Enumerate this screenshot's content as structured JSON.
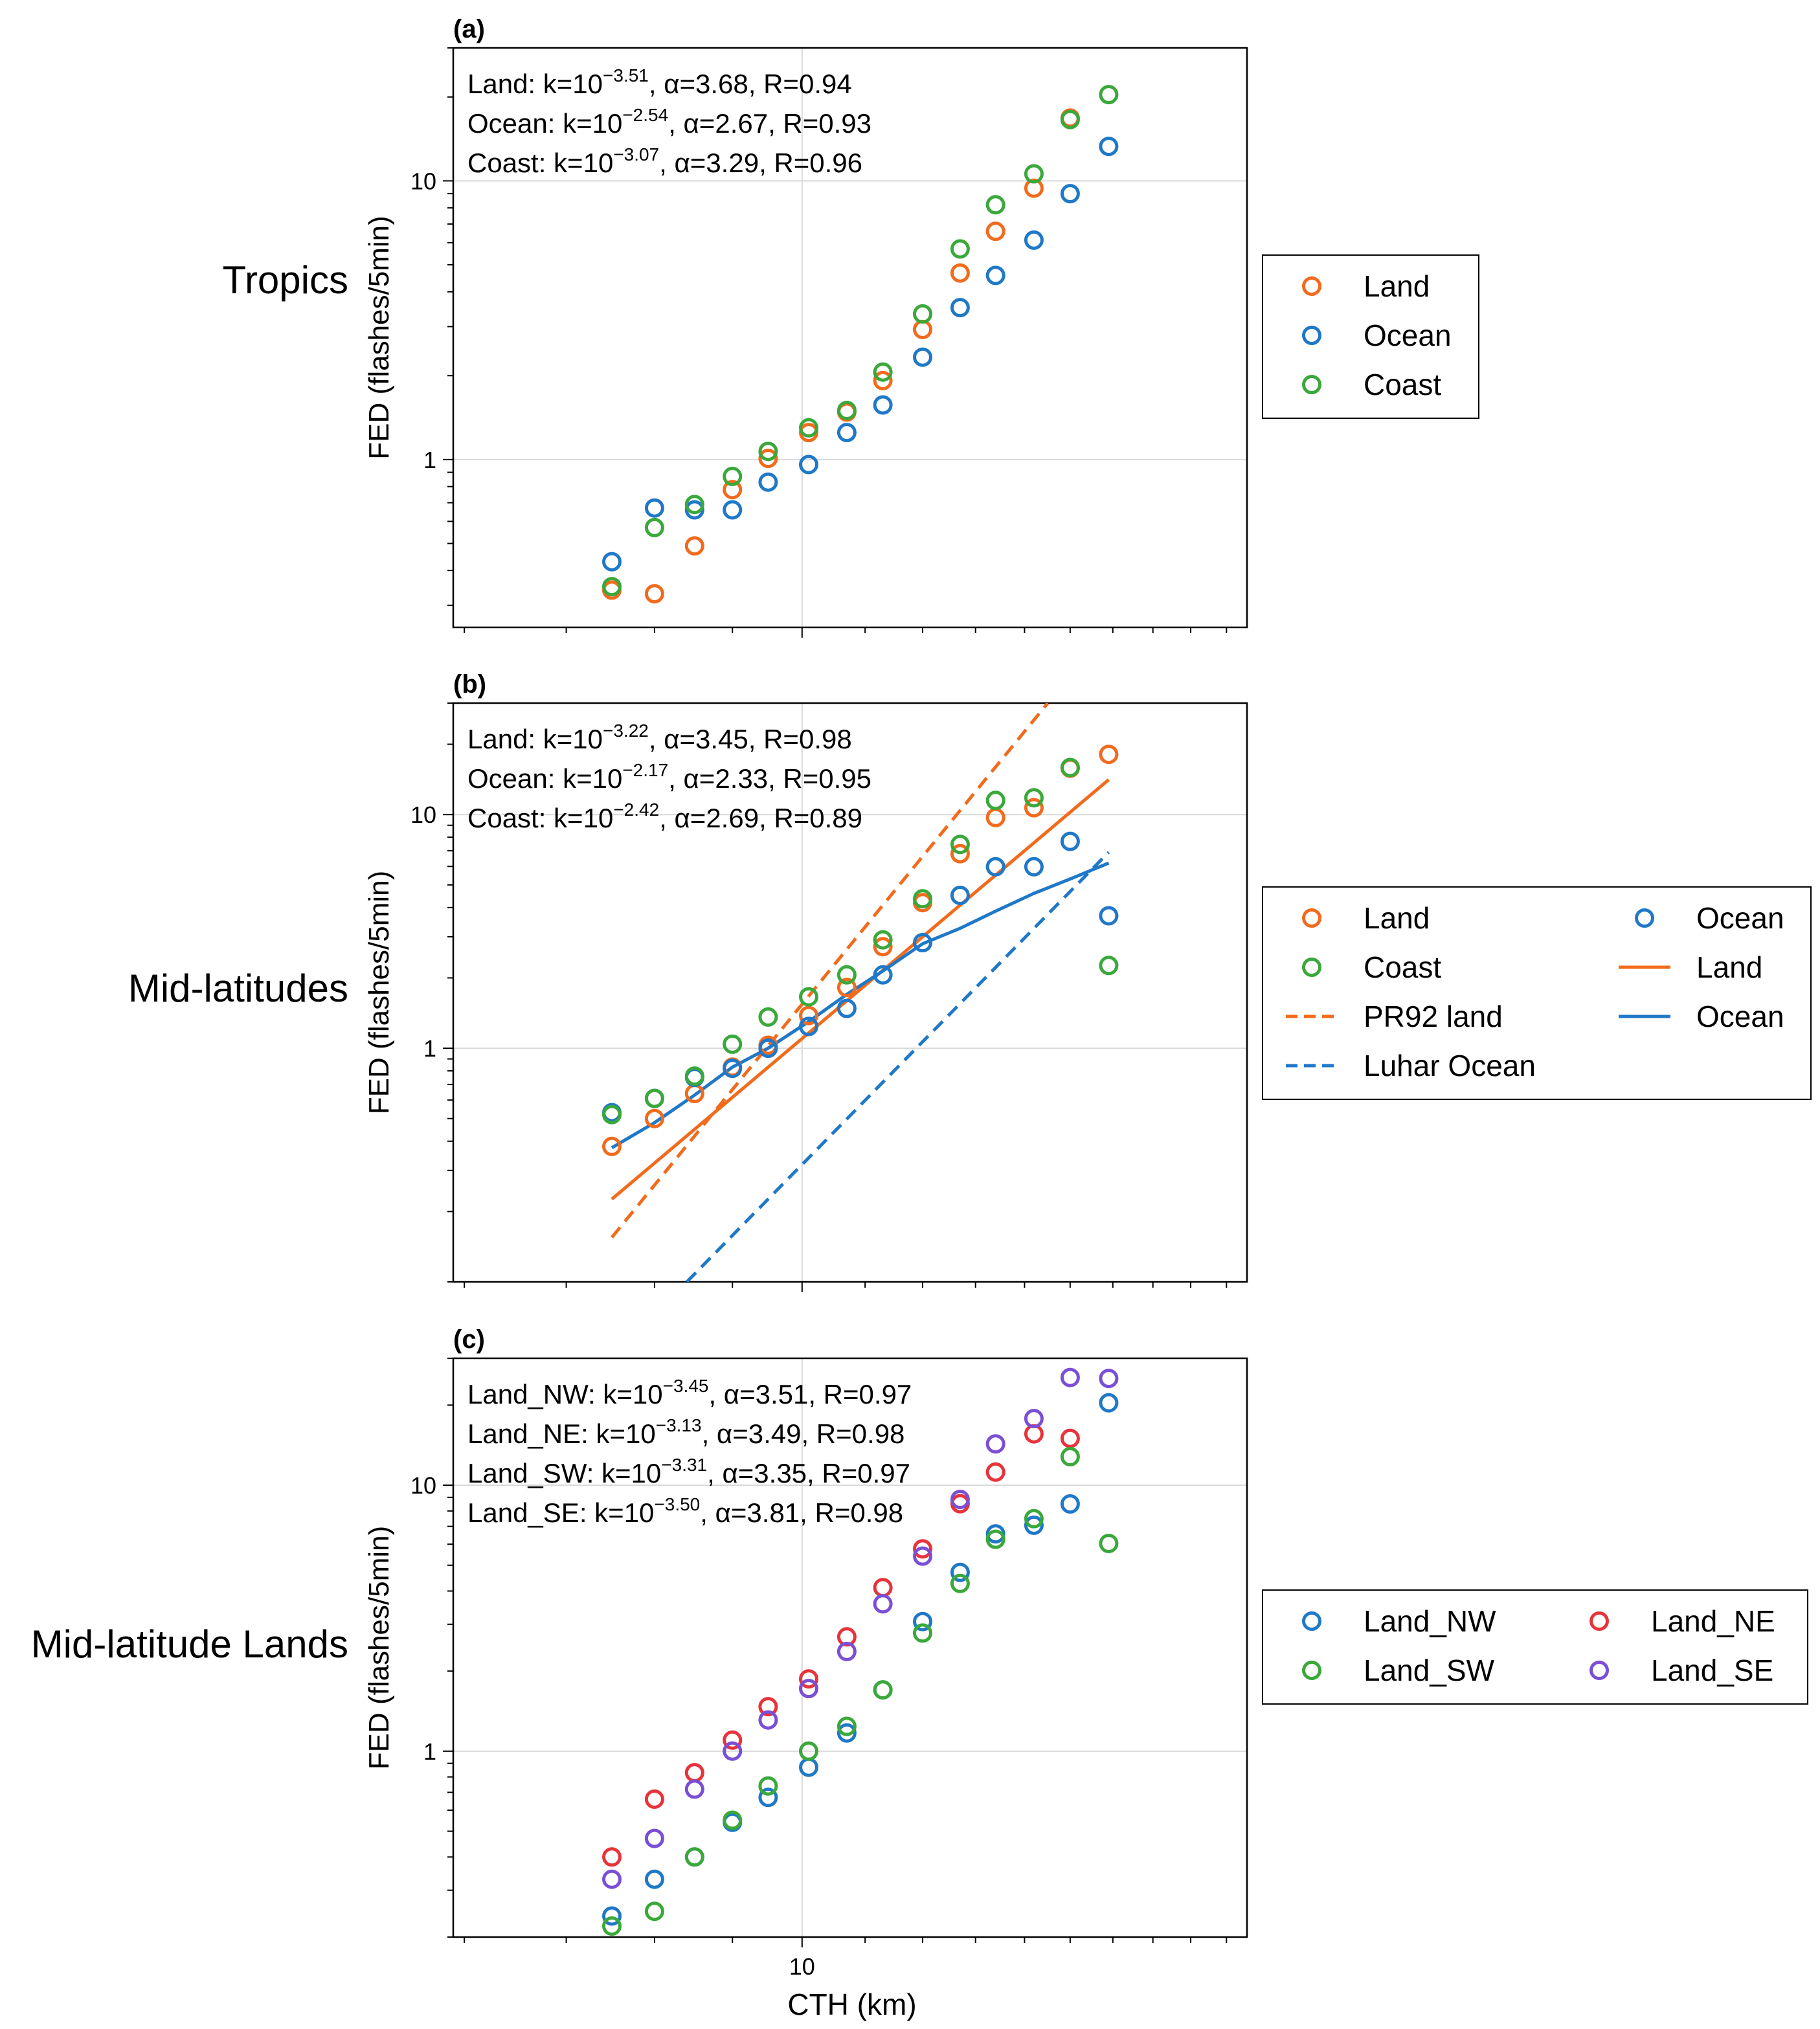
{
  "figure": {
    "xlabel": "CTH (km)",
    "ylabel": "FED (flashes/5min)",
    "xtick_label": "10",
    "colors": {
      "land": "#f26b1d",
      "ocean": "#1f78c8",
      "coast": "#3aa83a",
      "land_ne": "#e8333b",
      "land_se": "#7a4fd6",
      "grid": "#d9d9d9"
    }
  },
  "chart_data": [
    {
      "type": "scatter",
      "panel_label": "(a)",
      "row_title": "Tropics",
      "xlabel": "CTH (km)",
      "ylabel": "FED (flashes/5min)",
      "xscale": "log",
      "yscale": "log",
      "xlim": [
        5.9,
        19.6
      ],
      "ylim": [
        0.25,
        30
      ],
      "xticks": [
        10
      ],
      "yticks": [
        1,
        10
      ],
      "grid": true,
      "annotations": [
        {
          "prefix": "Land: k=10",
          "exp": "−3.51",
          "suffix": ", α=3.68, R=0.94"
        },
        {
          "prefix": "Ocean: k=10",
          "exp": "−2.54",
          "suffix": ", α=2.67, R=0.93"
        },
        {
          "prefix": "Coast: k=10",
          "exp": "−3.07",
          "suffix": ", α=3.29, R=0.96"
        }
      ],
      "legend": {
        "position": "outside-right",
        "columns": 1,
        "entries": [
          {
            "label": "Land",
            "kind": "marker",
            "color": "#f26b1d"
          },
          {
            "label": "Ocean",
            "kind": "marker",
            "color": "#1f78c8"
          },
          {
            "label": "Coast",
            "kind": "marker",
            "color": "#3aa83a"
          }
        ]
      },
      "series": [
        {
          "name": "Land",
          "color": "#f26b1d",
          "x": [
            7.5,
            8.0,
            8.5,
            9.0,
            9.5,
            10.1,
            10.7,
            11.3,
            12.0,
            12.7,
            13.4,
            14.2,
            15.0
          ],
          "y": [
            0.34,
            0.33,
            0.49,
            0.78,
            1.01,
            1.25,
            1.48,
            1.92,
            2.93,
            4.67,
            6.59,
            9.41,
            16.8
          ]
        },
        {
          "name": "Ocean",
          "color": "#1f78c8",
          "x": [
            7.5,
            8.0,
            8.5,
            9.0,
            9.5,
            10.1,
            10.7,
            11.3,
            12.0,
            12.7,
            13.4,
            14.2,
            15.0,
            15.9
          ],
          "y": [
            0.43,
            0.67,
            0.66,
            0.66,
            0.83,
            0.96,
            1.25,
            1.57,
            2.33,
            3.51,
            4.58,
            6.13,
            9.0,
            13.3
          ]
        },
        {
          "name": "Coast",
          "color": "#3aa83a",
          "x": [
            7.5,
            8.0,
            8.5,
            9.0,
            9.5,
            10.1,
            10.7,
            11.3,
            12.0,
            12.7,
            13.4,
            14.2,
            15.0,
            15.9
          ],
          "y": [
            0.35,
            0.57,
            0.69,
            0.87,
            1.07,
            1.3,
            1.5,
            2.06,
            3.33,
            5.7,
            8.21,
            10.6,
            16.6,
            20.4
          ]
        }
      ]
    },
    {
      "type": "scatter",
      "panel_label": "(b)",
      "row_title": "Mid-latitudes",
      "xlabel": "CTH (km)",
      "ylabel": "FED (flashes/5min)",
      "xscale": "log",
      "yscale": "log",
      "xlim": [
        5.9,
        19.6
      ],
      "ylim": [
        0.1,
        30
      ],
      "xticks": [
        10
      ],
      "yticks": [
        1,
        10
      ],
      "grid": true,
      "annotations": [
        {
          "prefix": "Land: k=10",
          "exp": "−3.22",
          "suffix": ", α=3.45, R=0.98"
        },
        {
          "prefix": "Ocean: k=10",
          "exp": "−2.17",
          "suffix": ", α=2.33, R=0.95"
        },
        {
          "prefix": "Coast: k=10",
          "exp": "−2.42",
          "suffix": ", α=2.69, R=0.89"
        }
      ],
      "legend": {
        "position": "outside-right",
        "columns": 2,
        "entries": [
          {
            "label": "Land",
            "kind": "marker",
            "color": "#f26b1d"
          },
          {
            "label": "Ocean",
            "kind": "marker",
            "color": "#1f78c8"
          },
          {
            "label": "Coast",
            "kind": "marker",
            "color": "#3aa83a"
          },
          {
            "label": "Land",
            "kind": "line",
            "color": "#f26b1d"
          },
          {
            "label": "PR92 land",
            "kind": "dashed",
            "color": "#f26b1d"
          },
          {
            "label": "Ocean",
            "kind": "line",
            "color": "#1f78c8"
          },
          {
            "label": "Luhar Ocean",
            "kind": "dashed",
            "color": "#1f78c8"
          }
        ]
      },
      "series": [
        {
          "name": "Land",
          "color": "#f26b1d",
          "x": [
            7.5,
            8.0,
            8.5,
            9.0,
            9.5,
            10.1,
            10.7,
            11.3,
            12.0,
            12.7,
            13.4,
            14.2,
            15.0,
            15.9
          ],
          "y": [
            0.38,
            0.5,
            0.64,
            0.83,
            1.03,
            1.38,
            1.82,
            2.72,
            4.2,
            6.8,
            9.71,
            10.7,
            15.8,
            18.1
          ]
        },
        {
          "name": "Ocean",
          "color": "#1f78c8",
          "x": [
            7.5,
            8.0,
            8.5,
            9.0,
            9.5,
            10.1,
            10.7,
            11.3,
            12.0,
            12.7,
            13.4,
            14.2,
            15.0,
            15.9
          ],
          "y": [
            0.53,
            0.61,
            0.75,
            0.82,
            1.0,
            1.24,
            1.48,
            2.06,
            2.83,
            4.51,
            5.98,
            5.98,
            7.68,
            3.69
          ]
        },
        {
          "name": "Coast",
          "color": "#3aa83a",
          "x": [
            7.5,
            8.0,
            8.5,
            9.0,
            9.5,
            10.1,
            10.7,
            11.3,
            12.0,
            12.7,
            13.4,
            14.2,
            15.0,
            15.9
          ],
          "y": [
            0.52,
            0.61,
            0.76,
            1.04,
            1.36,
            1.66,
            2.06,
            2.91,
            4.36,
            7.45,
            11.5,
            11.8,
            15.9,
            2.26
          ]
        }
      ],
      "lines": [
        {
          "name": "Land",
          "style": "solid",
          "color": "#f26b1d",
          "x": [
            7.5,
            15.9
          ],
          "y": [
            0.226,
            14.1
          ]
        },
        {
          "name": "PR92 land",
          "style": "dashed",
          "color": "#f26b1d",
          "x": [
            7.5,
            14.5
          ],
          "y": [
            0.155,
            30
          ]
        },
        {
          "name": "Ocean",
          "style": "solid",
          "color": "#1f78c8",
          "x": [
            7.5,
            8.0,
            8.5,
            9.0,
            9.5,
            10.1,
            10.7,
            11.3,
            12.0,
            12.7,
            13.4,
            14.2,
            15.0,
            15.9
          ],
          "y": [
            0.375,
            0.48,
            0.63,
            0.83,
            1.0,
            1.3,
            1.7,
            2.14,
            2.8,
            3.26,
            3.86,
            4.6,
            5.3,
            6.2
          ]
        },
        {
          "name": "Luhar Ocean",
          "style": "dashed",
          "color": "#1f78c8",
          "x": [
            8.4,
            15.9
          ],
          "y": [
            0.1,
            6.9
          ]
        }
      ]
    },
    {
      "type": "scatter",
      "panel_label": "(c)",
      "row_title": "Mid-latitude Lands",
      "xlabel": "CTH (km)",
      "ylabel": "FED (flashes/5min)",
      "xscale": "log",
      "yscale": "log",
      "xlim": [
        5.9,
        19.6
      ],
      "ylim": [
        0.2,
        30
      ],
      "xticks": [
        10
      ],
      "yticks": [
        1,
        10
      ],
      "grid": true,
      "annotations": [
        {
          "prefix": "Land_NW: k=10",
          "exp": "−3.45",
          "suffix": ", α=3.51, R=0.97"
        },
        {
          "prefix": "Land_NE: k=10",
          "exp": "−3.13",
          "suffix": ", α=3.49, R=0.98"
        },
        {
          "prefix": "Land_SW: k=10",
          "exp": "−3.31",
          "suffix": ", α=3.35, R=0.97"
        },
        {
          "prefix": "Land_SE: k=10",
          "exp": "−3.50",
          "suffix": ", α=3.81, R=0.98"
        }
      ],
      "legend": {
        "position": "outside-right",
        "columns": 2,
        "entries": [
          {
            "label": "Land_NW",
            "kind": "marker",
            "color": "#1f78c8"
          },
          {
            "label": "Land_NE",
            "kind": "marker",
            "color": "#e8333b"
          },
          {
            "label": "Land_SW",
            "kind": "marker",
            "color": "#3aa83a"
          },
          {
            "label": "Land_SE",
            "kind": "marker",
            "color": "#7a4fd6"
          }
        ]
      },
      "series": [
        {
          "name": "Land_NW",
          "color": "#1f78c8",
          "x": [
            7.5,
            8.0,
            8.5,
            9.0,
            9.5,
            10.1,
            10.7,
            11.3,
            12.0,
            12.7,
            13.4,
            14.2,
            15.0,
            15.9
          ],
          "y": [
            0.24,
            0.33,
            0.4,
            0.54,
            0.67,
            0.87,
            1.17,
            1.7,
            3.07,
            4.7,
            6.56,
            7.07,
            8.5,
            20.4
          ]
        },
        {
          "name": "Land_NE",
          "color": "#e8333b",
          "x": [
            7.5,
            8.0,
            8.5,
            9.0,
            9.5,
            10.1,
            10.7,
            11.3,
            12.0,
            12.7,
            13.4,
            14.2,
            15.0
          ],
          "y": [
            0.4,
            0.66,
            0.83,
            1.1,
            1.47,
            1.87,
            2.69,
            4.12,
            5.76,
            8.52,
            11.2,
            15.6,
            15.0
          ]
        },
        {
          "name": "Land_SW",
          "color": "#3aa83a",
          "x": [
            7.5,
            8.0,
            8.5,
            9.0,
            9.5,
            10.1,
            10.7,
            11.3,
            12.0,
            12.7,
            13.4,
            14.2,
            15.0,
            15.9
          ],
          "y": [
            0.22,
            0.25,
            0.4,
            0.55,
            0.74,
            1.0,
            1.24,
            1.7,
            2.78,
            4.27,
            6.26,
            7.48,
            12.8,
            6.04
          ]
        },
        {
          "name": "Land_SE",
          "color": "#7a4fd6",
          "x": [
            7.5,
            8.0,
            8.5,
            9.0,
            9.5,
            10.1,
            10.7,
            11.3,
            12.0,
            12.7,
            13.4,
            14.2,
            15.0,
            15.9
          ],
          "y": [
            0.33,
            0.47,
            0.72,
            1.0,
            1.31,
            1.72,
            2.37,
            3.58,
            5.41,
            8.84,
            14.3,
            17.8,
            25.4,
            25.2
          ]
        }
      ]
    }
  ]
}
